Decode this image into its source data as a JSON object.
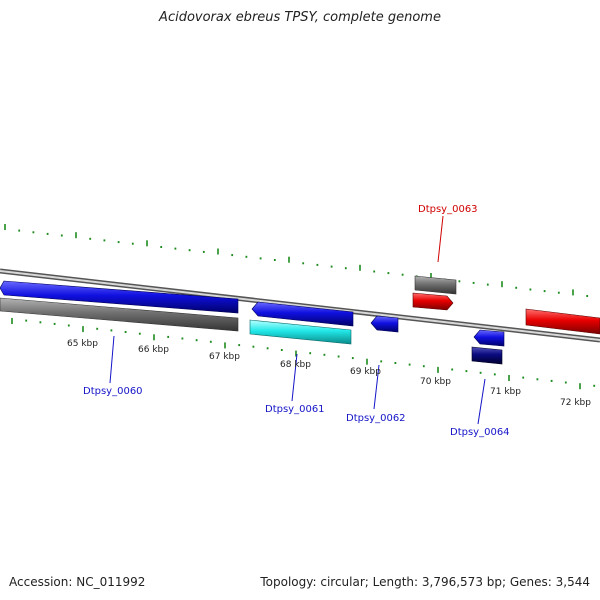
{
  "title": "Acidovorax ebreus TPSY, complete genome",
  "footer": {
    "accession": "Accession: NC_011992",
    "summary": "Topology: circular; Length: 3,796,573 bp; Genes: 3,544"
  },
  "colors": {
    "backbone": "#8a8a8a",
    "tick": "#1d8a1d",
    "forward_gene": "#1010e0",
    "reverse_gene": "#e00000",
    "grey_track": "#6e6e6e",
    "cyan_track": "#22e8e8",
    "navy_track": "#0a0a80",
    "label_blue": "#1414c8",
    "label_red": "#d00000",
    "ruler_text": "#222222"
  },
  "ruler_labels": [
    "65 kbp",
    "66 kbp",
    "67 kbp",
    "68 kbp",
    "69 kbp",
    "70 kbp",
    "71 kbp",
    "72 kbp"
  ],
  "gene_labels": [
    {
      "text": "Dtpsy_0060",
      "color": "blue"
    },
    {
      "text": "Dtpsy_0061",
      "color": "blue"
    },
    {
      "text": "Dtpsy_0062",
      "color": "blue"
    },
    {
      "text": "Dtpsy_0063",
      "color": "red"
    },
    {
      "text": "Dtpsy_0064",
      "color": "blue"
    }
  ]
}
